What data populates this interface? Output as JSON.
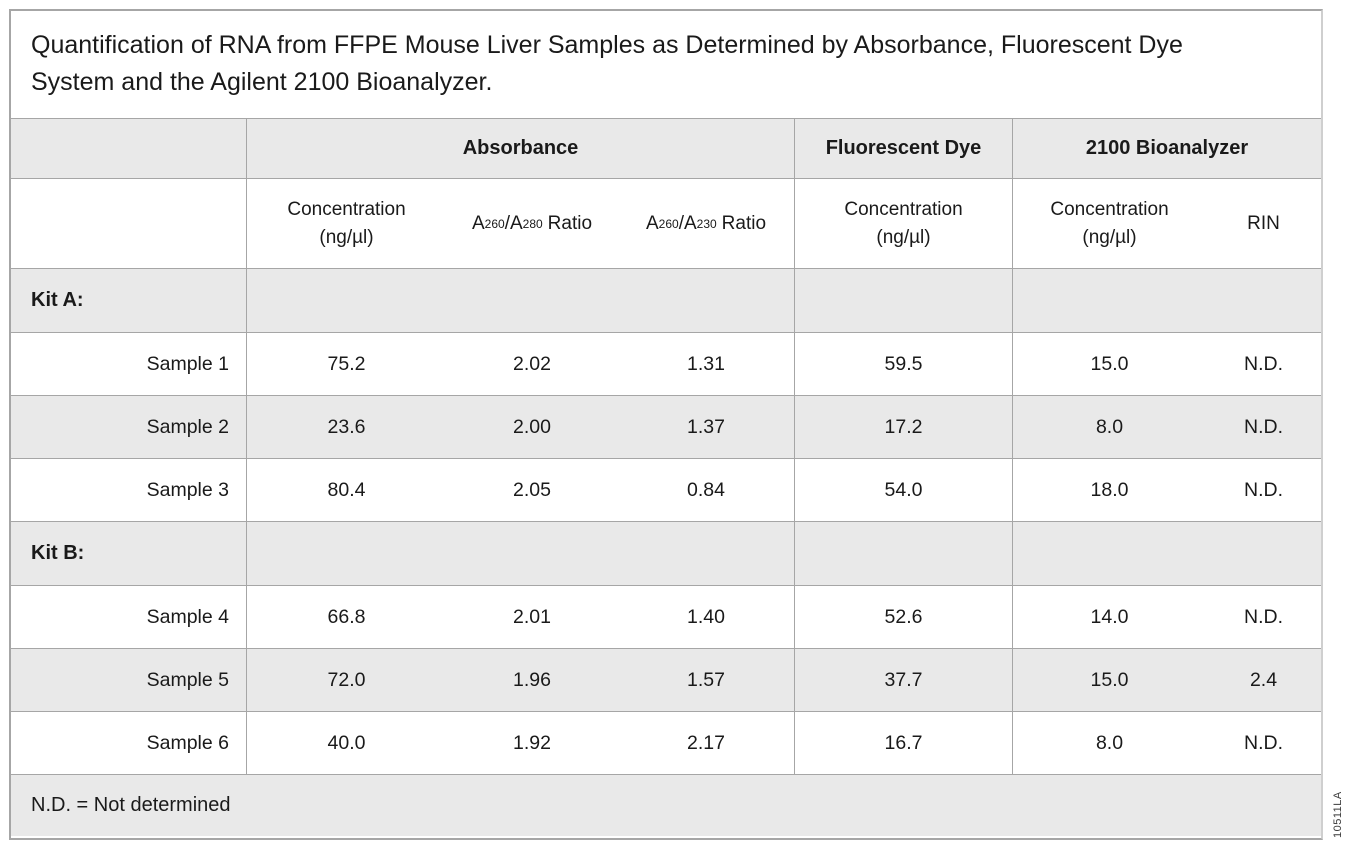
{
  "title_lines": [
    "Quantification of RNA from FFPE Mouse Liver Samples as Determined by Absorbance, Fluorescent Dye",
    "System and the Agilent 2100 Bioanalyzer."
  ],
  "colors": {
    "row_shade": "#e9e9e9",
    "border": "#a6a6a6",
    "text": "#1a1a1a"
  },
  "table": {
    "group_headers": [
      "",
      "Absorbance",
      "Fluorescent Dye",
      "2100 Bioanalyzer"
    ],
    "column_headers": {
      "abs_concentration": {
        "line1": "Concentration",
        "line2": "(ng/µl)"
      },
      "ratio_260_280": {
        "base1": "A",
        "sub1": "260",
        "base2": "/A",
        "sub2": "280",
        "suffix": "Ratio"
      },
      "ratio_260_230": {
        "base1": "A",
        "sub1": "260",
        "base2": "/A",
        "sub2": "230",
        "suffix": "Ratio"
      },
      "dye_concentration": {
        "line1": "Concentration",
        "line2": "(ng/µl)"
      },
      "bio_concentration": {
        "line1": "Concentration",
        "line2": "(ng/µl)"
      },
      "rin": {
        "line1": "RIN"
      }
    },
    "sections": [
      {
        "label": "Kit A:",
        "rows": [
          {
            "label": "Sample 1",
            "values": [
              "75.2",
              "2.02",
              "1.31",
              "59.5",
              "15.0",
              "N.D."
            ]
          },
          {
            "label": "Sample 2",
            "values": [
              "23.6",
              "2.00",
              "1.37",
              "17.2",
              "8.0",
              "N.D."
            ]
          },
          {
            "label": "Sample 3",
            "values": [
              "80.4",
              "2.05",
              "0.84",
              "54.0",
              "18.0",
              "N.D."
            ]
          }
        ]
      },
      {
        "label": "Kit B:",
        "rows": [
          {
            "label": "Sample 4",
            "values": [
              "66.8",
              "2.01",
              "1.40",
              "52.6",
              "14.0",
              "N.D."
            ]
          },
          {
            "label": "Sample 5",
            "values": [
              "72.0",
              "1.96",
              "1.57",
              "37.7",
              "15.0",
              "2.4"
            ]
          },
          {
            "label": "Sample 6",
            "values": [
              "40.0",
              "1.92",
              "2.17",
              "16.7",
              "8.0",
              "N.D."
            ]
          }
        ]
      }
    ],
    "footnote": "N.D. = Not determined"
  },
  "watermark": "10511LA"
}
